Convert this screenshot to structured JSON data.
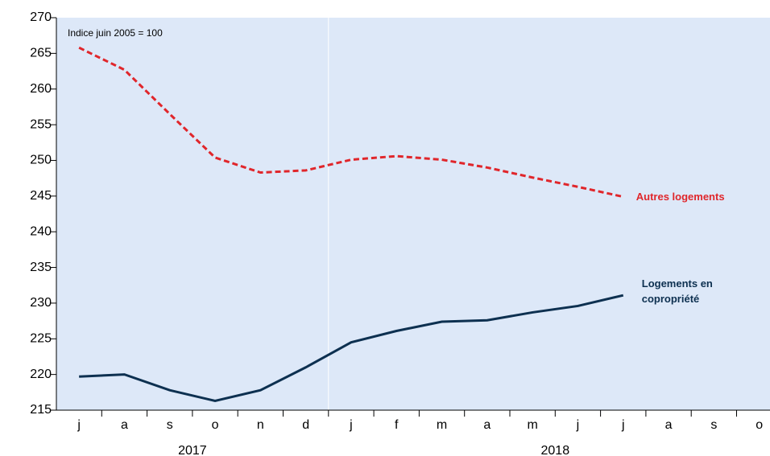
{
  "chart_data": {
    "type": "line",
    "annotation": "Indice juin 2005 = 100",
    "groups": [
      {
        "name": "2017",
        "categories": [
          "j",
          "a",
          "s",
          "o",
          "n",
          "d"
        ]
      },
      {
        "name": "2018",
        "categories": [
          "j",
          "f",
          "m",
          "a",
          "m",
          "j",
          "j",
          "a",
          "s",
          "o"
        ]
      }
    ],
    "series": [
      {
        "name": "Autres logements",
        "color": "#e0262b",
        "dashed": true,
        "values": [
          265.8,
          262.7,
          256.5,
          250.4,
          248.3,
          248.6,
          250.1,
          250.6,
          250.1,
          249.0,
          247.6,
          246.3,
          244.9,
          null,
          null,
          null
        ]
      },
      {
        "name": "Logements en copropriété",
        "color": "#0d3050",
        "dashed": false,
        "values": [
          219.7,
          220.0,
          217.8,
          216.3,
          217.8,
          221.0,
          224.5,
          226.1,
          227.4,
          227.6,
          228.7,
          229.6,
          231.1,
          null,
          null,
          null
        ]
      }
    ],
    "ylim": [
      215,
      270
    ],
    "yticks": [
      215,
      220,
      225,
      230,
      235,
      240,
      245,
      250,
      255,
      260,
      265,
      270
    ]
  }
}
